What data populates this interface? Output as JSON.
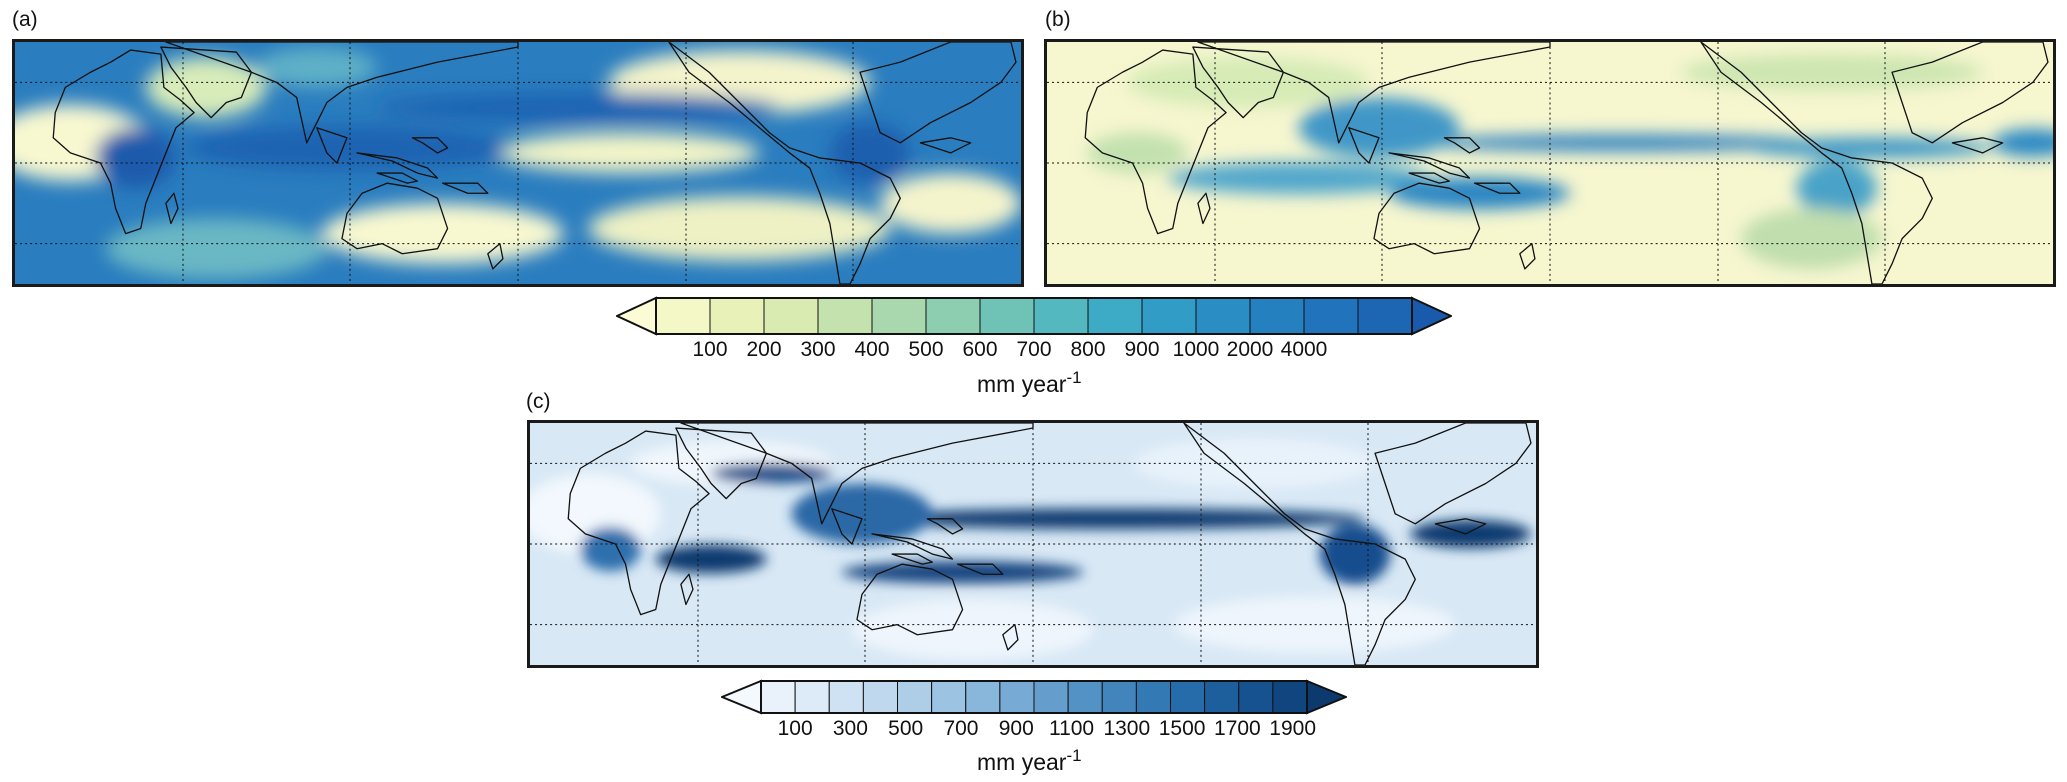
{
  "panels": [
    {
      "label": "(a)"
    },
    {
      "label": "(b)"
    },
    {
      "label": "(c)"
    }
  ],
  "colorbar_top": {
    "ticks": [
      "100",
      "200",
      "300",
      "400",
      "500",
      "600",
      "700",
      "800",
      "900",
      "1000",
      "2000",
      "4000"
    ],
    "unit": "mm year",
    "unit_exp": "-1",
    "colors": [
      "#fbfbd6",
      "#f4f7c6",
      "#e8f1b8",
      "#d9ebb0",
      "#c4e2ad",
      "#a9d8ae",
      "#8dcdb0",
      "#6fc2b6",
      "#53b8bf",
      "#3eabc6",
      "#319cc6",
      "#2a8dc3",
      "#2580bf",
      "#2173bb",
      "#1d66b4",
      "#1a5aac"
    ]
  },
  "colorbar_bottom": {
    "ticks": [
      "100",
      "300",
      "500",
      "700",
      "900",
      "1100",
      "1300",
      "1500",
      "1700",
      "1900"
    ],
    "unit": "mm year",
    "unit_exp": "-1",
    "colors": [
      "#f4f9fe",
      "#e9f2fb",
      "#dcebf7",
      "#cfe2f3",
      "#bfd8ee",
      "#aecee8",
      "#9cc3e2",
      "#89b7db",
      "#77aad4",
      "#659ecc",
      "#5392c5",
      "#4285bd",
      "#3379b4",
      "#266caa",
      "#1d5f9d",
      "#165290",
      "#11457f",
      "#0d3a6e"
    ]
  }
}
